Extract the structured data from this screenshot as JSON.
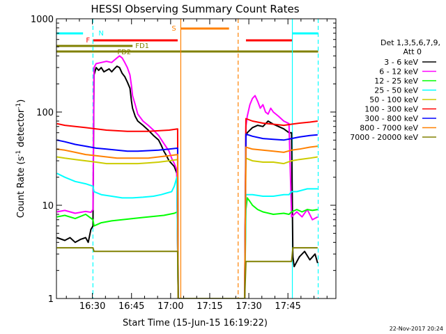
{
  "chart_data": {
    "type": "line",
    "title": "HESSI Observing Summary Count Rates",
    "xlabel": "Start Time (15-Jun-15 16:19:22)",
    "ylabel_main": "Count Rate (s",
    "ylabel_sup1": "-1",
    "ylabel_mid": " detector",
    "ylabel_sup2": "-1",
    "ylabel_end": ")",
    "ylog": true,
    "ylim": [
      1,
      1000
    ],
    "xlim_min": [
      -3.2,
      104
    ],
    "y_ticks": [
      {
        "v": 1,
        "label": "1"
      },
      {
        "v": 10,
        "label": "10"
      },
      {
        "v": 100,
        "label": "100"
      },
      {
        "v": 1000,
        "label": "1000"
      }
    ],
    "x_ticks": [
      {
        "v": 10.6,
        "label": "16:30"
      },
      {
        "v": 25.6,
        "label": "16:45"
      },
      {
        "v": 40.6,
        "label": "17:00"
      },
      {
        "v": 55.6,
        "label": "17:15"
      },
      {
        "v": 70.6,
        "label": "17:30"
      },
      {
        "v": 85.6,
        "label": "17:45"
      }
    ],
    "legend_header": [
      "Det 1,3,5,6,7,9,",
      "Att 0"
    ],
    "series": [
      {
        "name": "3 - 6 keV",
        "color": "#000000",
        "points": [
          [
            -3,
            4.5
          ],
          [
            0,
            4.2
          ],
          [
            2,
            4.5
          ],
          [
            4,
            4.0
          ],
          [
            6,
            4.3
          ],
          [
            8,
            4.5
          ],
          [
            9,
            4.0
          ],
          [
            10,
            5.5
          ],
          [
            10.8,
            6
          ],
          [
            11.2,
            250
          ],
          [
            12,
            300
          ],
          [
            13,
            280
          ],
          [
            14,
            300
          ],
          [
            15,
            270
          ],
          [
            16,
            280
          ],
          [
            17,
            290
          ],
          [
            18,
            270
          ],
          [
            19,
            290
          ],
          [
            20,
            310
          ],
          [
            21,
            300
          ],
          [
            22,
            260
          ],
          [
            23,
            240
          ],
          [
            24,
            210
          ],
          [
            25,
            180
          ],
          [
            25.6,
            130
          ],
          [
            26,
            110
          ],
          [
            27,
            90
          ],
          [
            28,
            80
          ],
          [
            30,
            72
          ],
          [
            32,
            64
          ],
          [
            34,
            56
          ],
          [
            36,
            50
          ],
          [
            37,
            44
          ],
          [
            38,
            38
          ],
          [
            39,
            34
          ],
          [
            40,
            30
          ],
          [
            41,
            28
          ],
          [
            42,
            26
          ],
          [
            43,
            22
          ],
          [
            43.5,
            1.0
          ],
          [
            69,
            1.0
          ],
          [
            69.5,
            55
          ],
          [
            70,
            60
          ],
          [
            72,
            68
          ],
          [
            74,
            72
          ],
          [
            76,
            70
          ],
          [
            78,
            80
          ],
          [
            80,
            74
          ],
          [
            82,
            70
          ],
          [
            84,
            66
          ],
          [
            86,
            60
          ],
          [
            87,
            60
          ],
          [
            87.5,
            2.8
          ],
          [
            88,
            2.2
          ],
          [
            90,
            2.8
          ],
          [
            92,
            3.2
          ],
          [
            94,
            2.6
          ],
          [
            96,
            3.0
          ],
          [
            97,
            2.4
          ]
        ]
      },
      {
        "name": "6 - 12 keV",
        "color": "#ff00ff",
        "points": [
          [
            -3,
            8.5
          ],
          [
            0,
            8.8
          ],
          [
            4,
            8.2
          ],
          [
            8,
            8.6
          ],
          [
            10,
            8.4
          ],
          [
            10.8,
            9
          ],
          [
            11.2,
            300
          ],
          [
            12,
            330
          ],
          [
            14,
            340
          ],
          [
            16,
            350
          ],
          [
            18,
            340
          ],
          [
            19,
            360
          ],
          [
            20,
            380
          ],
          [
            21,
            400
          ],
          [
            22,
            380
          ],
          [
            23,
            340
          ],
          [
            24,
            300
          ],
          [
            25,
            250
          ],
          [
            25.6,
            190
          ],
          [
            26,
            150
          ],
          [
            27,
            120
          ],
          [
            28,
            95
          ],
          [
            30,
            80
          ],
          [
            32,
            72
          ],
          [
            34,
            64
          ],
          [
            36,
            56
          ],
          [
            38,
            46
          ],
          [
            40,
            38
          ],
          [
            41,
            32
          ],
          [
            42,
            28
          ],
          [
            43,
            24
          ],
          [
            43.5,
            1.0
          ],
          [
            69,
            1.0
          ],
          [
            69.5,
            70
          ],
          [
            70,
            90
          ],
          [
            71,
            120
          ],
          [
            72,
            140
          ],
          [
            73,
            150
          ],
          [
            74,
            130
          ],
          [
            75,
            110
          ],
          [
            76,
            120
          ],
          [
            77,
            100
          ],
          [
            78,
            95
          ],
          [
            79,
            110
          ],
          [
            80,
            100
          ],
          [
            82,
            90
          ],
          [
            84,
            80
          ],
          [
            86,
            75
          ],
          [
            87,
            7.5
          ],
          [
            89,
            8.5
          ],
          [
            91,
            7.5
          ],
          [
            93,
            9
          ],
          [
            95,
            7
          ],
          [
            97,
            7.5
          ]
        ]
      },
      {
        "name": "12 - 25 keV",
        "color": "#00ff00",
        "points": [
          [
            -3,
            7.5
          ],
          [
            0,
            7.8
          ],
          [
            4,
            7.2
          ],
          [
            8,
            8
          ],
          [
            10.8,
            7
          ],
          [
            11.2,
            6
          ],
          [
            14,
            6.5
          ],
          [
            18,
            6.8
          ],
          [
            22,
            7
          ],
          [
            26,
            7.2
          ],
          [
            30,
            7.4
          ],
          [
            34,
            7.6
          ],
          [
            38,
            7.8
          ],
          [
            40,
            8
          ],
          [
            42,
            8.2
          ],
          [
            43.2,
            8.5
          ],
          [
            43.5,
            1.0
          ],
          [
            69,
            1.0
          ],
          [
            69.5,
            9
          ],
          [
            70,
            12
          ],
          [
            71,
            11
          ],
          [
            72,
            10
          ],
          [
            74,
            9
          ],
          [
            76,
            8.5
          ],
          [
            80,
            8
          ],
          [
            84,
            8.2
          ],
          [
            86,
            8
          ],
          [
            87,
            8.5
          ],
          [
            89,
            9
          ],
          [
            91,
            8.5
          ],
          [
            93,
            9
          ],
          [
            95,
            8.8
          ],
          [
            97,
            9
          ]
        ]
      },
      {
        "name": "25 - 50 keV",
        "color": "#00ffff",
        "points": [
          [
            -3,
            22
          ],
          [
            0,
            20
          ],
          [
            4,
            18
          ],
          [
            8,
            17
          ],
          [
            10.8,
            16
          ],
          [
            11.2,
            14
          ],
          [
            14,
            13
          ],
          [
            18,
            12.5
          ],
          [
            22,
            12
          ],
          [
            26,
            12
          ],
          [
            30,
            12.2
          ],
          [
            34,
            12.5
          ],
          [
            37,
            13
          ],
          [
            39,
            13.5
          ],
          [
            41,
            14
          ],
          [
            42,
            16
          ],
          [
            43,
            20
          ],
          [
            43.5,
            1.0
          ],
          [
            69,
            1.0
          ],
          [
            69.5,
            13
          ],
          [
            72,
            13
          ],
          [
            76,
            12.5
          ],
          [
            80,
            12.5
          ],
          [
            84,
            13
          ],
          [
            86,
            13
          ],
          [
            87,
            14
          ],
          [
            89,
            14
          ],
          [
            91,
            14.5
          ],
          [
            93,
            15
          ],
          [
            95,
            15
          ],
          [
            97,
            15
          ]
        ]
      },
      {
        "name": "50 - 100 keV",
        "color": "#cccc00",
        "points": [
          [
            -3,
            33
          ],
          [
            0,
            32
          ],
          [
            4,
            31
          ],
          [
            8,
            30
          ],
          [
            12,
            29
          ],
          [
            16,
            28
          ],
          [
            20,
            28
          ],
          [
            24,
            28
          ],
          [
            28,
            28
          ],
          [
            32,
            28.5
          ],
          [
            36,
            29
          ],
          [
            40,
            30
          ],
          [
            43.3,
            31
          ],
          [
            43.5,
            1.0
          ],
          [
            69,
            1.0
          ],
          [
            69.5,
            32
          ],
          [
            72,
            30
          ],
          [
            76,
            29
          ],
          [
            80,
            29
          ],
          [
            84,
            28
          ],
          [
            87,
            30
          ],
          [
            90,
            31
          ],
          [
            94,
            32
          ],
          [
            97,
            33
          ]
        ]
      },
      {
        "name": "100 - 300 keV",
        "color": "#ff0000",
        "points": [
          [
            -3,
            75
          ],
          [
            0,
            72
          ],
          [
            4,
            70
          ],
          [
            8,
            68
          ],
          [
            12,
            66
          ],
          [
            16,
            64
          ],
          [
            20,
            63
          ],
          [
            24,
            62
          ],
          [
            28,
            62
          ],
          [
            32,
            62
          ],
          [
            36,
            63
          ],
          [
            40,
            64
          ],
          [
            43.3,
            66
          ],
          [
            43.5,
            1.0
          ],
          [
            69,
            1.0
          ],
          [
            69.5,
            85
          ],
          [
            72,
            80
          ],
          [
            76,
            76
          ],
          [
            80,
            74
          ],
          [
            84,
            72
          ],
          [
            87,
            74
          ],
          [
            90,
            76
          ],
          [
            94,
            78
          ],
          [
            97,
            80
          ]
        ]
      },
      {
        "name": "300 - 800 keV",
        "color": "#0000ff",
        "points": [
          [
            -3,
            50
          ],
          [
            0,
            48
          ],
          [
            4,
            45
          ],
          [
            8,
            43
          ],
          [
            12,
            41
          ],
          [
            16,
            40
          ],
          [
            20,
            39
          ],
          [
            24,
            38
          ],
          [
            28,
            38
          ],
          [
            32,
            38.5
          ],
          [
            36,
            39
          ],
          [
            40,
            40
          ],
          [
            43.3,
            41
          ],
          [
            43.5,
            1.0
          ],
          [
            69,
            1.0
          ],
          [
            69.5,
            58
          ],
          [
            72,
            55
          ],
          [
            76,
            52
          ],
          [
            80,
            51
          ],
          [
            84,
            50
          ],
          [
            87,
            52
          ],
          [
            90,
            54
          ],
          [
            94,
            56
          ],
          [
            97,
            57
          ]
        ]
      },
      {
        "name": "800 - 7000 keV",
        "color": "#ff8000",
        "points": [
          [
            -3,
            40
          ],
          [
            0,
            39
          ],
          [
            4,
            37
          ],
          [
            8,
            35
          ],
          [
            12,
            34
          ],
          [
            16,
            33
          ],
          [
            20,
            32
          ],
          [
            24,
            32
          ],
          [
            28,
            32
          ],
          [
            32,
            32
          ],
          [
            36,
            33
          ],
          [
            40,
            34
          ],
          [
            43.3,
            35
          ],
          [
            43.5,
            1.0
          ],
          [
            69,
            1.0
          ],
          [
            69.5,
            42
          ],
          [
            72,
            40
          ],
          [
            76,
            39
          ],
          [
            80,
            38
          ],
          [
            84,
            37
          ],
          [
            87,
            39
          ],
          [
            90,
            40
          ],
          [
            94,
            42
          ],
          [
            97,
            43
          ]
        ]
      },
      {
        "name": "7000 - 20000 keV",
        "color": "#808000",
        "points": [
          [
            -3,
            3.5
          ],
          [
            0,
            3.5
          ],
          [
            10,
            3.5
          ],
          [
            10.8,
            3.5
          ],
          [
            11.2,
            3.2
          ],
          [
            43.3,
            3.2
          ],
          [
            43.5,
            1.0
          ],
          [
            69,
            1.0
          ],
          [
            69.5,
            2.5
          ],
          [
            87,
            2.5
          ],
          [
            87.5,
            3.5
          ],
          [
            97,
            3.5
          ]
        ]
      }
    ],
    "event_markers": [
      {
        "label": "N",
        "color": "#00ffff",
        "kind": "dashed",
        "x": 10.8
      },
      {
        "label": "",
        "color": "#00ffff",
        "kind": "dashed",
        "x": 97.2
      },
      {
        "label": "",
        "color": "#00ffff",
        "kind": "solid",
        "x": 87.3
      },
      {
        "label": "S",
        "color": "#ff8000",
        "kind": "solid",
        "x": 44.5
      },
      {
        "label": "",
        "color": "#ff8000",
        "kind": "dashed",
        "x": 66.5
      }
    ],
    "flag_bars": [
      {
        "label": "N",
        "color": "#00ffff",
        "segments": [
          [
            -3.2,
            7
          ],
          [
            87.3,
            97.2
          ]
        ],
        "level": 0
      },
      {
        "label": "F",
        "color": "#ff0000",
        "segments": [
          [
            10.8,
            43.3
          ],
          [
            69.5,
            87.3
          ]
        ],
        "level": 1
      },
      {
        "label": "S",
        "color": "#ff8000",
        "segments": [
          [
            44.5,
            63
          ]
        ],
        "level": -1
      },
      {
        "label": "FD1",
        "color": "#808000",
        "segments": [
          [
            -3.2,
            26
          ]
        ],
        "level": 2
      },
      {
        "label": "FD2",
        "color": "#808000",
        "segments": [
          [
            -3.2,
            97.2
          ]
        ],
        "level": 3
      }
    ]
  },
  "footer_timestamp": "22-Nov-2017 20:24"
}
